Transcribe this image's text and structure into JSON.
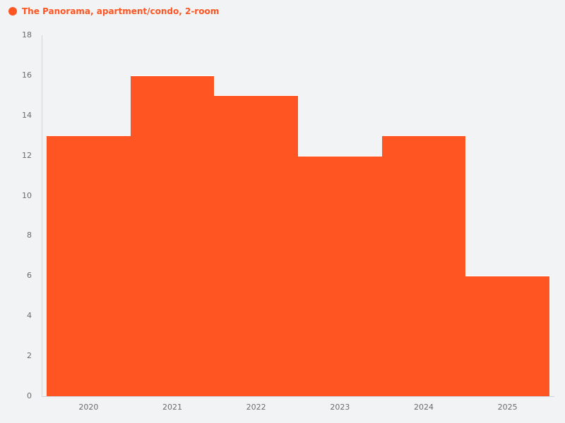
{
  "legend": {
    "label": "The Panorama, apartment/condo, 2-room",
    "color": "#ff5522"
  },
  "y_ticks": [
    "0",
    "2",
    "4",
    "6",
    "8",
    "10",
    "12",
    "14",
    "16",
    "18"
  ],
  "x_ticks": [
    "2020",
    "2021",
    "2022",
    "2023",
    "2024",
    "2025"
  ],
  "chart_data": {
    "type": "bar",
    "title": "",
    "xlabel": "",
    "ylabel": "",
    "categories": [
      "2020",
      "2021",
      "2022",
      "2023",
      "2024",
      "2025"
    ],
    "series": [
      {
        "name": "The Panorama, apartment/condo, 2-room",
        "color": "#ff5522",
        "values": [
          13,
          16,
          15,
          12,
          13,
          6
        ]
      }
    ],
    "ylim": [
      0,
      18
    ],
    "grid": false,
    "legend_position": "top-left"
  }
}
